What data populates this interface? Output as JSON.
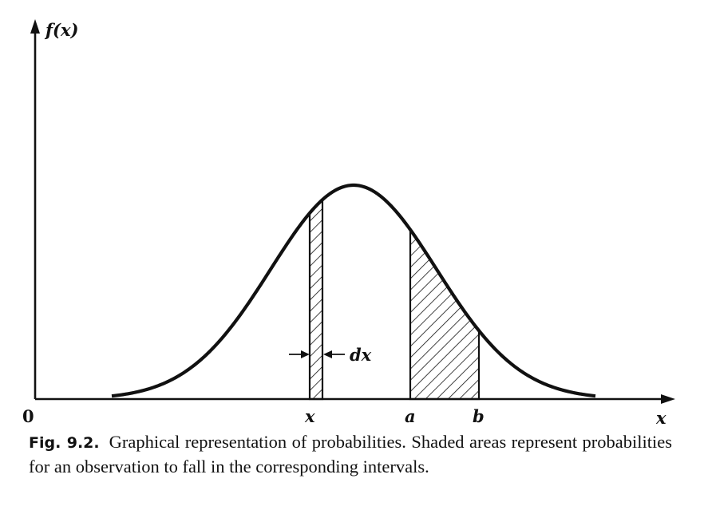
{
  "figure": {
    "y_axis_label": "f(x)",
    "x_axis_label": "x",
    "origin_label": "0",
    "strip_label": "x",
    "strip_width_label": "dx",
    "interval_start_label": "a",
    "interval_end_label": "b"
  },
  "caption": {
    "number": "Fig. 9.2.",
    "text": "Graphical representation of probabilities. Shaded areas represent probabilities for an observation to fall in the corresponding intervals."
  }
}
